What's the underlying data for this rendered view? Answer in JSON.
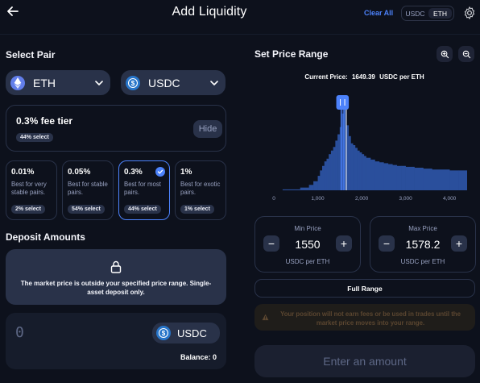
{
  "header": {
    "title": "Add Liquidity",
    "clear_all": "Clear All",
    "toggle": [
      "USDC",
      "ETH"
    ],
    "toggle_active": "ETH"
  },
  "select_pair": {
    "title": "Select Pair",
    "token_a": {
      "symbol": "ETH",
      "icon": "eth-logo-icon"
    },
    "token_b": {
      "symbol": "USDC",
      "icon": "usdc-logo-icon"
    }
  },
  "fee": {
    "title": "0.3% fee tier",
    "badge": "44% select",
    "hide_label": "Hide",
    "tiers": [
      {
        "pct": "0.01%",
        "desc": "Best for very stable pairs.",
        "badge": "2% select"
      },
      {
        "pct": "0.05%",
        "desc": "Best for stable pairs.",
        "badge": "54% select"
      },
      {
        "pct": "0.3%",
        "desc": "Best for most pairs.",
        "badge": "44% select",
        "selected": true
      },
      {
        "pct": "1%",
        "desc": "Best for exotic pairs.",
        "badge": "1% select"
      }
    ]
  },
  "deposit": {
    "title": "Deposit Amounts",
    "locked_message": "The market price is outside your specified price range. Single-asset deposit only.",
    "amount": "0",
    "token": "USDC",
    "balance_label": "Balance: 0"
  },
  "price_range": {
    "title": "Set Price Range",
    "current_price_label": "Current Price:",
    "current_price_value": "1649.39",
    "current_price_unit": "USDC per ETH",
    "min": {
      "label": "Min Price",
      "value": "1550",
      "unit": "USDC per ETH"
    },
    "max": {
      "label": "Max Price",
      "value": "1578.2",
      "unit": "USDC per ETH"
    },
    "full_range_label": "Full Range",
    "warning": "Your position will not earn fees or be used in trades until the market price moves into your range."
  },
  "submit_label": "Enter an amount",
  "colors": {
    "accent": "#4c82fb",
    "background": "#0d111c",
    "surface": "#293249",
    "warning_text": "#5b4630"
  },
  "chart_data": {
    "type": "area",
    "x_ticks": [
      "0",
      "1,000",
      "2,000",
      "3,000",
      "4,000"
    ],
    "xlim": [
      0,
      4400
    ],
    "current_price": 1649.39,
    "range_min": 1550,
    "range_max": 1578.2,
    "x": [
      200,
      600,
      800,
      900,
      1000,
      1050,
      1100,
      1150,
      1200,
      1250,
      1300,
      1350,
      1400,
      1450,
      1500,
      1550,
      1600,
      1650,
      1700,
      1750,
      1800,
      1850,
      1900,
      1950,
      2000,
      2050,
      2100,
      2200,
      2300,
      2400,
      2500,
      2600,
      2700,
      2800,
      2900,
      3000,
      3200,
      3400,
      3600,
      3800,
      4000,
      4200,
      4400
    ],
    "y": [
      1,
      3,
      6,
      10,
      16,
      22,
      27,
      32,
      35,
      40,
      44,
      48,
      55,
      62,
      70,
      85,
      100,
      72,
      60,
      52,
      50,
      47,
      44,
      42,
      40,
      38,
      36,
      34,
      32,
      31,
      30,
      29,
      28,
      27,
      27,
      26,
      25,
      24,
      23,
      23,
      22,
      22,
      21
    ]
  }
}
